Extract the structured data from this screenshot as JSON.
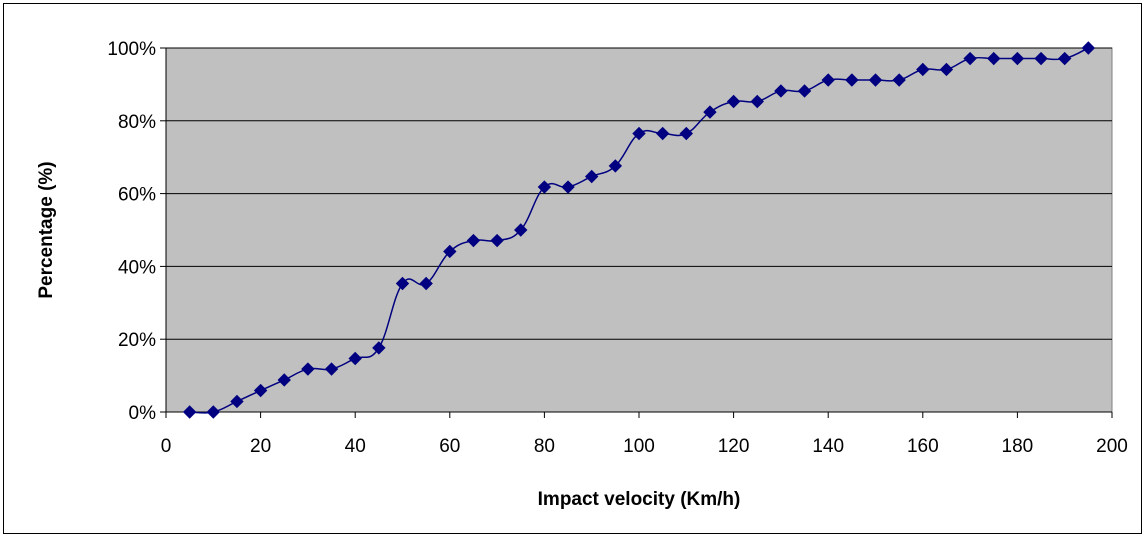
{
  "chart_data": {
    "type": "line",
    "title": "",
    "xlabel": "Impact velocity (Km/h)",
    "ylabel": "Percentage (%)",
    "xlim": [
      0,
      200
    ],
    "ylim": [
      0,
      100
    ],
    "x_ticks": [
      0,
      20,
      40,
      60,
      80,
      100,
      120,
      140,
      160,
      180,
      200
    ],
    "x_tick_labels": [
      "0",
      "20",
      "40",
      "60",
      "80",
      "100",
      "120",
      "140",
      "160",
      "180",
      "200"
    ],
    "y_ticks": [
      0,
      20,
      40,
      60,
      80,
      100
    ],
    "y_tick_labels": [
      "0%",
      "20%",
      "40%",
      "60%",
      "80%",
      "100%"
    ],
    "grid": "horizontal",
    "plot_background": "#c0c0c0",
    "line_color": "#000080",
    "marker": "diamond",
    "series": [
      {
        "x": [
          5,
          10,
          15,
          20,
          25,
          30,
          35,
          40,
          45,
          50,
          55,
          60,
          65,
          70,
          75,
          80,
          85,
          90,
          95,
          100,
          105,
          110,
          115,
          120,
          125,
          130,
          135,
          140,
          145,
          150,
          155,
          160,
          165,
          170,
          175,
          180,
          185,
          190,
          195
        ],
        "values": [
          0,
          0,
          2.9,
          5.9,
          8.8,
          11.8,
          11.8,
          14.7,
          17.6,
          35.3,
          35.3,
          44.1,
          47.1,
          47.1,
          50.0,
          61.8,
          61.8,
          64.7,
          67.6,
          76.5,
          76.5,
          76.5,
          82.4,
          85.3,
          85.3,
          88.2,
          88.2,
          91.2,
          91.2,
          91.2,
          91.2,
          94.1,
          94.1,
          97.1,
          97.1,
          97.1,
          97.1,
          97.1,
          100
        ]
      }
    ]
  }
}
